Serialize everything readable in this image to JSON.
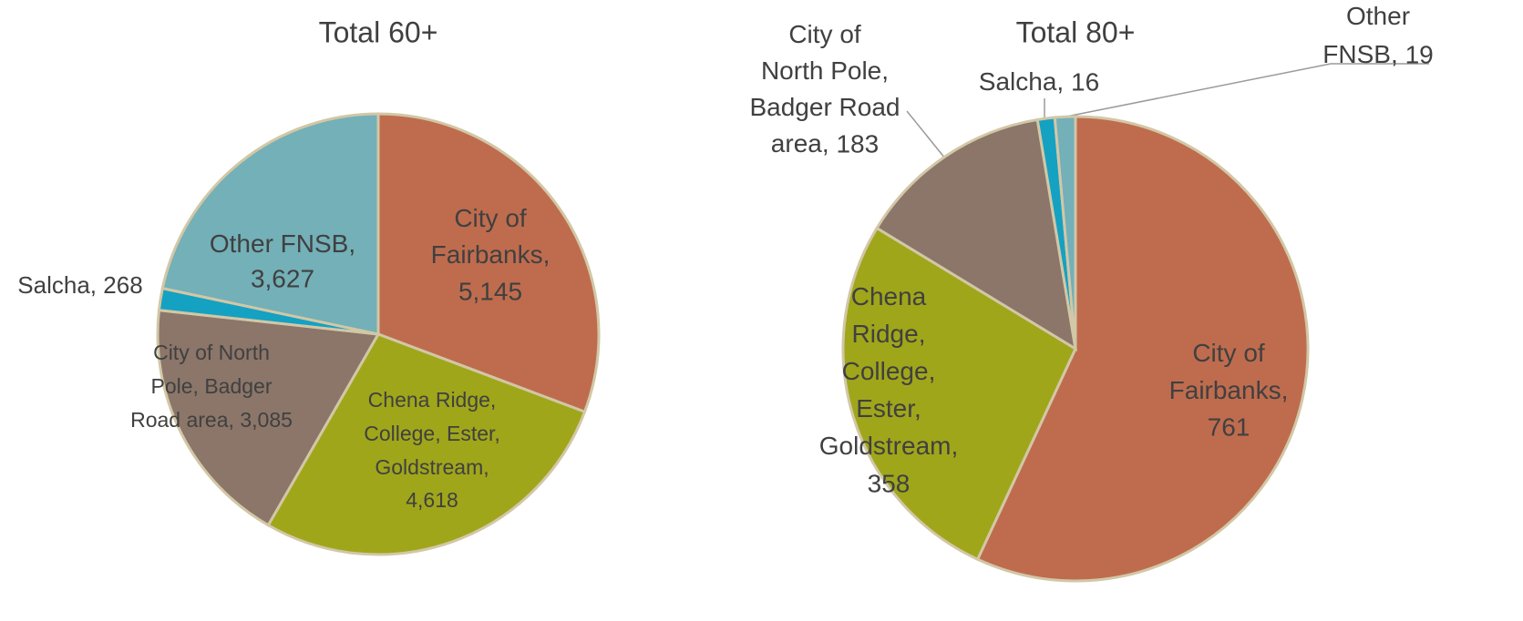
{
  "chart_data": [
    {
      "type": "pie",
      "title": "Total 60+",
      "categories": [
        "City of\nFairbanks,",
        "Chena Ridge,\nCollege, Ester,\nGoldstream,",
        "City of North\nPole, Badger\nRoad area,",
        "Salcha,",
        "Other FNSB,"
      ],
      "values": [
        5145,
        4618,
        3085,
        268,
        3627
      ],
      "value_labels": [
        "5,145",
        "4,618",
        "3,085",
        "268",
        "3,627"
      ],
      "colors": [
        "#bf6c4e",
        "#a0a61a",
        "#8b7669",
        "#15a1c2",
        "#73b0b8"
      ]
    },
    {
      "type": "pie",
      "title": "Total 80+",
      "categories": [
        "City of\nFairbanks,",
        "Chena\nRidge,\nCollege,\nEster,\nGoldstream,",
        "City of\nNorth Pole,\nBadger Road\narea,",
        "Salcha,",
        "Other\nFNSB,"
      ],
      "values": [
        761,
        358,
        183,
        16,
        19
      ],
      "value_labels": [
        "761",
        "358",
        "183",
        "16",
        "19"
      ],
      "colors": [
        "#bf6c4e",
        "#a0a61a",
        "#8b7669",
        "#15a1c2",
        "#73b0b8"
      ]
    }
  ]
}
